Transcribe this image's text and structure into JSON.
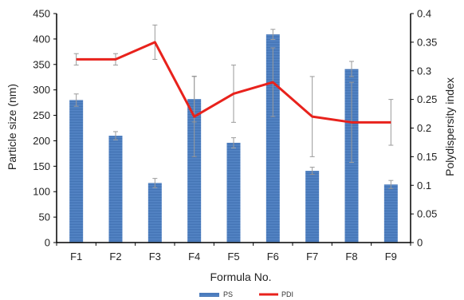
{
  "chart_data": {
    "type": "bar",
    "categories": [
      "F1",
      "F2",
      "F3",
      "F4",
      "F5",
      "F6",
      "F7",
      "F8",
      "F9"
    ],
    "series": [
      {
        "name": "PS",
        "type": "bar",
        "axis": "left",
        "values": [
          280,
          210,
          117,
          282,
          196,
          409,
          141,
          341,
          114
        ],
        "error": [
          12,
          8,
          9,
          45,
          10,
          10,
          7,
          15,
          8
        ],
        "color": "#4a7cc0"
      },
      {
        "name": "PDI",
        "type": "line",
        "axis": "right",
        "values": [
          0.32,
          0.32,
          0.35,
          0.22,
          0.26,
          0.28,
          0.22,
          0.21,
          0.21
        ],
        "error": [
          0.01,
          0.01,
          0.03,
          0.07,
          0.05,
          0.06,
          0.07,
          0.07,
          0.04
        ],
        "color": "#e8221c"
      }
    ],
    "xlabel": "Formula No.",
    "ylabel": "Particle size (nm)",
    "y2label": "Polydispersity index",
    "ylim": [
      0,
      450
    ],
    "y2lim": [
      0,
      0.4
    ],
    "yticks": [
      "0",
      "50",
      "100",
      "150",
      "200",
      "250",
      "300",
      "350",
      "400",
      "450"
    ],
    "y2ticks": [
      "0",
      "0.05",
      "0.1",
      "0.15",
      "0.2",
      "0.25",
      "0.3",
      "0.35",
      "0.4"
    ],
    "grid": false,
    "legend_position": "bottom"
  }
}
